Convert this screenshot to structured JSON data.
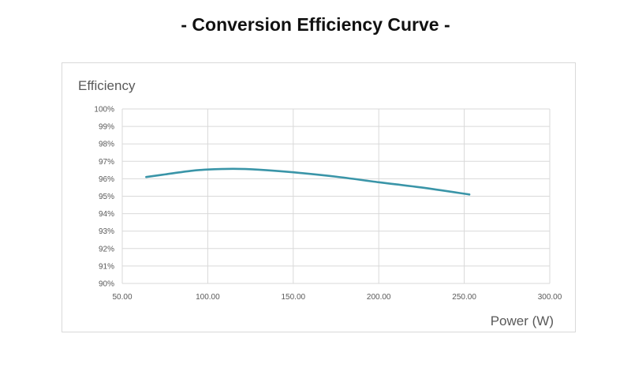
{
  "page": {
    "title": "- Conversion Efficiency Curve -"
  },
  "chart_data": {
    "type": "line",
    "title": "- Conversion Efficiency Curve -",
    "xlabel": "Power (W)",
    "ylabel": "Efficiency",
    "xlim": [
      50,
      300
    ],
    "ylim": [
      90,
      100
    ],
    "x_ticks": [
      "50.00",
      "100.00",
      "150.00",
      "200.00",
      "250.00",
      "300.00"
    ],
    "y_ticks": [
      "90%",
      "91%",
      "92%",
      "93%",
      "94%",
      "95%",
      "96%",
      "97%",
      "98%",
      "99%",
      "100%"
    ],
    "grid": true,
    "legend": "none",
    "series": [
      {
        "color": "#3a95a8",
        "x": [
          64,
          75,
          90,
          100,
          115,
          130,
          150,
          175,
          200,
          225,
          253
        ],
        "y": [
          96.1,
          96.25,
          96.45,
          96.53,
          96.57,
          96.52,
          96.37,
          96.12,
          95.8,
          95.5,
          95.1
        ]
      }
    ]
  }
}
